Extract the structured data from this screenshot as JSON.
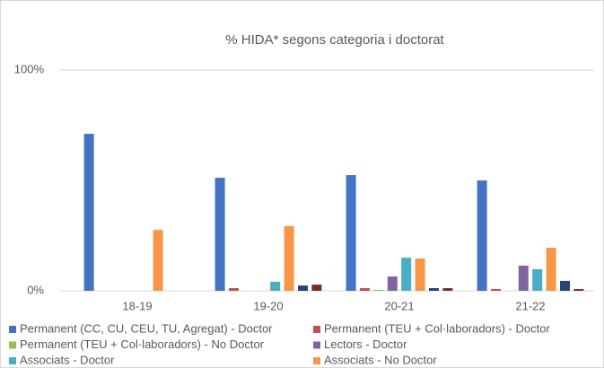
{
  "chart_data": {
    "type": "bar",
    "title": "% HIDA* segons categoria i doctorat",
    "categories": [
      "18-19",
      "19-20",
      "20-21",
      "21-22"
    ],
    "series": [
      {
        "name": "Permanent (CC, CU, CEU, TU, Agregat) - Doctor",
        "color": "#4472c4",
        "values": [
          71.1,
          51.2,
          52.4,
          50
        ]
      },
      {
        "name": "Permanent (TEU + Col·laboradors) - Doctor",
        "color": "#c0504d",
        "values": [
          0,
          1.2,
          1.2,
          0.8
        ]
      },
      {
        "name": "Permanent (TEU + Col·laboradors) - No Doctor",
        "color": "#9bbb59",
        "values": [
          0,
          0,
          0.4,
          0
        ]
      },
      {
        "name": "Lectors - Doctor",
        "color": "#8064a2",
        "values": [
          0,
          0,
          6.5,
          11.4
        ]
      },
      {
        "name": "Associats - Doctor",
        "color": "#4bacc6",
        "values": [
          0,
          4.1,
          15,
          9.8
        ]
      },
      {
        "name": "Associats - No Doctor",
        "color": "#f79646",
        "values": [
          27.6,
          29.3,
          14.6,
          19.5
        ]
      },
      {
        "color": "#264478",
        "values": [
          0,
          2.4,
          1.2,
          4.5
        ]
      },
      {
        "color": "#772c2a",
        "values": [
          0,
          2.8,
          1.2,
          0.8
        ]
      }
    ],
    "ylim": [
      0,
      100
    ],
    "yticks": [
      {
        "value": 0,
        "label": "0%"
      },
      {
        "value": 100,
        "label": "100%"
      }
    ],
    "grid": true
  }
}
